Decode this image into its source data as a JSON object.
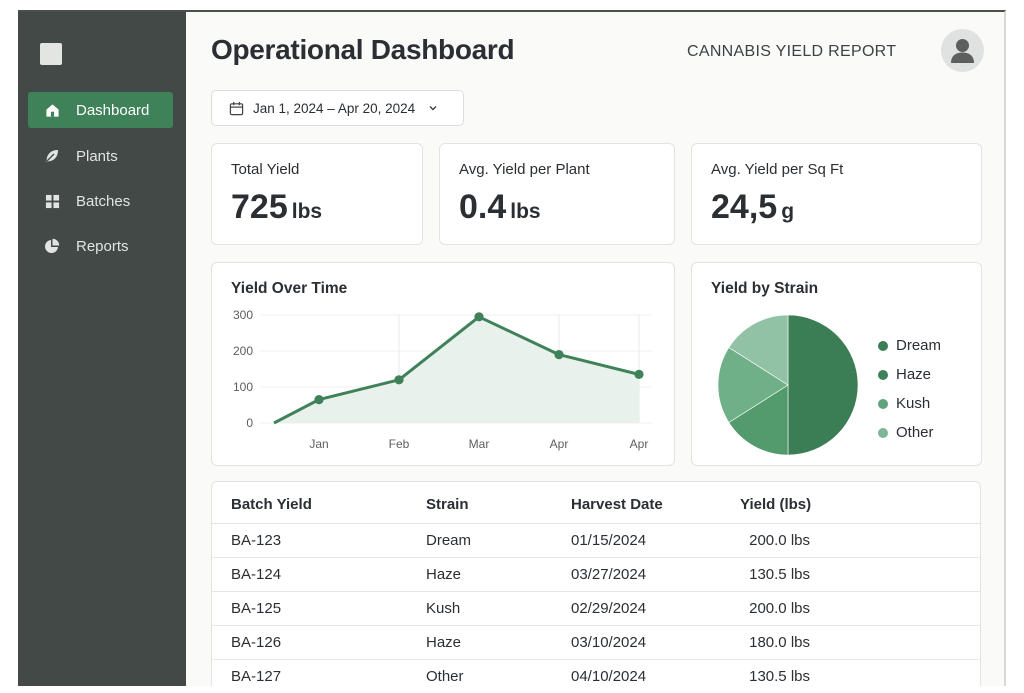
{
  "sidebar": {
    "items": [
      {
        "label": "Dashboard",
        "icon": "home-icon",
        "active": true
      },
      {
        "label": "Plants",
        "icon": "leaf-icon",
        "active": false
      },
      {
        "label": "Batches",
        "icon": "grid-icon",
        "active": false
      },
      {
        "label": "Reports",
        "icon": "pie-icon",
        "active": false
      }
    ]
  },
  "header": {
    "title": "Operational Dashboard",
    "report_title": "CANNABIS YIELD REPORT",
    "avatar_icon": "user-icon"
  },
  "date_range": {
    "label": "Jan 1, 2024 – Apr 20, 2024"
  },
  "stats": [
    {
      "label": "Total Yield",
      "value": "725",
      "unit": "lbs"
    },
    {
      "label": "Avg. Yield per Plant",
      "value": "0.4",
      "unit": "lbs"
    },
    {
      "label": "Avg. Yield per Sq Ft",
      "value": "24,5",
      "unit": "g"
    }
  ],
  "line_chart": {
    "title": "Yield Over Time"
  },
  "pie_chart": {
    "title": "Yield by Strain"
  },
  "chart_data": [
    {
      "type": "area",
      "title": "Yield Over Time",
      "categories": [
        "Jan",
        "Feb",
        "Mar",
        "Apr",
        "Apr"
      ],
      "series": [
        {
          "values": [
            65,
            120,
            295,
            190,
            135
          ]
        }
      ],
      "ylim": [
        0,
        300
      ],
      "yticks": [
        "300",
        "200",
        "100",
        "0"
      ],
      "grid": true,
      "color": "#3f8158",
      "fill": "#e9f1ec"
    },
    {
      "type": "pie",
      "title": "Yield by Strain",
      "categories": [
        "Dream",
        "Haze",
        "Kush",
        "Other"
      ],
      "values": [
        50,
        16,
        18,
        16
      ],
      "colors": [
        "#3b7d55",
        "#539a6d",
        "#6fb088",
        "#92c2a5"
      ],
      "legend": "right"
    }
  ],
  "table": {
    "headers": [
      "Batch Yield",
      "Strain",
      "Harvest Date",
      "Yield (lbs)"
    ],
    "rows": [
      [
        "BA-123",
        "Dream",
        "01/15/2024",
        "200.0 lbs"
      ],
      [
        "BA-124",
        "Haze",
        "03/27/2024",
        "130.5 lbs"
      ],
      [
        "BA-125",
        "Kush",
        "02/29/2024",
        "200.0 lbs"
      ],
      [
        "BA-126",
        "Haze",
        "03/10/2024",
        "180.0 lbs"
      ],
      [
        "BA-127",
        "Other",
        "04/10/2024",
        "130.5 lbs"
      ]
    ]
  }
}
